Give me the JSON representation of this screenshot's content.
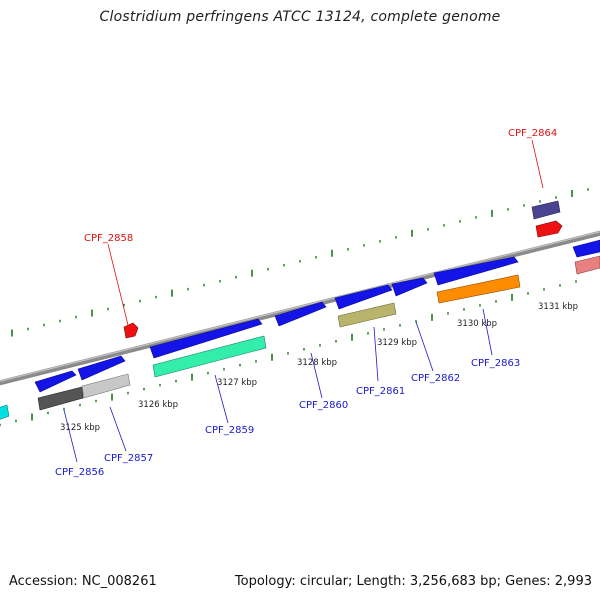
{
  "title": "Clostridium perfringens ATCC 13124, complete genome",
  "footer": {
    "accession": "Accession: NC_008261",
    "summary": "Topology: circular; Length: 3,256,683 bp; Genes: 2,993"
  },
  "colors": {
    "backbone": "#8a8a8a",
    "tick": "#1a7a1a",
    "forward_gene": "#1414e6",
    "label_blue": "#1a1acc",
    "label_red": "#dd1111"
  },
  "kbp_labels": [
    "3125 kbp",
    "3126 kbp",
    "3127 kbp",
    "3128 kbp",
    "3129 kbp",
    "3130 kbp",
    "3131 kbp"
  ],
  "genes": [
    {
      "id": "CPF_2856",
      "color": "#555555"
    },
    {
      "id": "CPF_2857",
      "color": "#c8c8c8"
    },
    {
      "id": "CPF_2858",
      "color": "#ee1111"
    },
    {
      "id": "CPF_2859",
      "color": "#33eeaa"
    },
    {
      "id": "CPF_2860",
      "color": "#1414e6"
    },
    {
      "id": "CPF_2861",
      "color": "#b8b46e"
    },
    {
      "id": "CPF_2862",
      "color": "#1414e6"
    },
    {
      "id": "CPF_2863",
      "color": "#ff8c00"
    },
    {
      "id": "CPF_2864",
      "color": "#4a4490"
    }
  ]
}
